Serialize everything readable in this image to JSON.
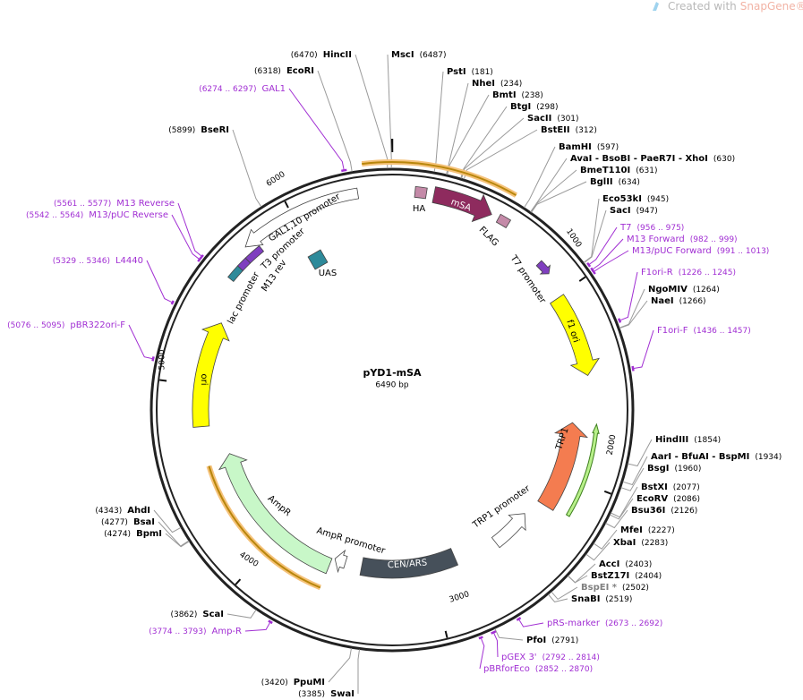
{
  "branding": {
    "prefix": "Created with",
    "product": "SnapGene®"
  },
  "plasmid": {
    "name": "pYD1-mSA",
    "size": "6490 bp"
  },
  "scale_ticks": [
    "1000",
    "2000",
    "3000",
    "4000",
    "5000",
    "6000"
  ],
  "enzymes": [
    {
      "name": "HincII",
      "position": "(6470)"
    },
    {
      "name": "EcoRI",
      "position": "(6318)"
    },
    {
      "name": "BseRI",
      "position": "(5899)"
    },
    {
      "name": "AhdI",
      "position": "(4343)"
    },
    {
      "name": "BsaI",
      "position": "(4277)"
    },
    {
      "name": "BpmI",
      "position": "(4274)"
    },
    {
      "name": "ScaI",
      "position": "(3862)"
    },
    {
      "name": "PpuMI",
      "position": "(3420)"
    },
    {
      "name": "SwaI",
      "position": "(3385)"
    },
    {
      "name": "MscI",
      "position": "(6487)"
    },
    {
      "name": "PstI",
      "position": "(181)"
    },
    {
      "name": "NheI",
      "position": "(234)"
    },
    {
      "name": "BmtI",
      "position": "(238)"
    },
    {
      "name": "BtgI",
      "position": "(298)"
    },
    {
      "name": "SacII",
      "position": "(301)"
    },
    {
      "name": "BstEII",
      "position": "(312)"
    },
    {
      "name": "BamHI",
      "position": "(597)"
    },
    {
      "name": "AvaI - BsoBI - PaeR7I - XhoI",
      "position": "(630)"
    },
    {
      "name": "BmeT110I",
      "position": "(631)"
    },
    {
      "name": "BglII",
      "position": "(634)"
    },
    {
      "name": "Eco53kI",
      "position": "(945)"
    },
    {
      "name": "SacI",
      "position": "(947)"
    },
    {
      "name": "NgoMIV",
      "position": "(1264)"
    },
    {
      "name": "NaeI",
      "position": "(1266)"
    },
    {
      "name": "HindIII",
      "position": "(1854)"
    },
    {
      "name": "AarI - BfuAI - BspMI",
      "position": "(1934)"
    },
    {
      "name": "BsgI",
      "position": "(1960)"
    },
    {
      "name": "BstXI",
      "position": "(2077)"
    },
    {
      "name": "EcoRV",
      "position": "(2086)"
    },
    {
      "name": "Bsu36I",
      "position": "(2126)"
    },
    {
      "name": "MfeI",
      "position": "(2227)"
    },
    {
      "name": "XbaI",
      "position": "(2283)"
    },
    {
      "name": "AccI",
      "position": "(2403)"
    },
    {
      "name": "BstZ17I",
      "position": "(2404)"
    },
    {
      "name": "BspEI *",
      "position": "(2502)",
      "color": "#808080"
    },
    {
      "name": "SnaBI",
      "position": "(2519)"
    },
    {
      "name": "PfoI",
      "position": "(2791)"
    }
  ],
  "primers": [
    {
      "name": "GAL1",
      "position": "(6274 .. 6297)"
    },
    {
      "name": "M13 Reverse",
      "position": "(5561 .. 5577)"
    },
    {
      "name": "M13/pUC Reverse",
      "position": "(5542 .. 5564)"
    },
    {
      "name": "L4440",
      "position": "(5329 .. 5346)"
    },
    {
      "name": "pBR322ori-F",
      "position": "(5076 .. 5095)"
    },
    {
      "name": "Amp-R",
      "position": "(3774 .. 3793)"
    },
    {
      "name": "T7",
      "position": "(956 .. 975)"
    },
    {
      "name": "M13 Forward",
      "position": "(982 .. 999)"
    },
    {
      "name": "M13/pUC Forward",
      "position": "(991 .. 1013)"
    },
    {
      "name": "F1ori-R",
      "position": "(1226 .. 1245)"
    },
    {
      "name": "F1ori-F",
      "position": "(1436 .. 1457)"
    },
    {
      "name": "pRS-marker",
      "position": "(2673 .. 2692)"
    },
    {
      "name": "pGEX 3'",
      "position": "(2792 .. 2814)"
    },
    {
      "name": "pBRforEco",
      "position": "(2852 .. 2870)"
    }
  ],
  "primer_color": "#a12fd3",
  "features": [
    {
      "label": "GAL1,10 promoter",
      "color": "#ffffff"
    },
    {
      "label": "T3 promoter",
      "color": "#7f3fbf"
    },
    {
      "label": "M13 rev",
      "color": "#7f3fbf"
    },
    {
      "label": "lac promoter",
      "color": "#2e8a9a"
    },
    {
      "label": "UAS",
      "color": "#2e8a9a"
    },
    {
      "label": "HA",
      "color": "#c48aa8"
    },
    {
      "label": "mSA",
      "color": "#8e2b5e"
    },
    {
      "label": "FLAG",
      "color": "#c48aa8"
    },
    {
      "label": "T7 promoter",
      "color": "#7f3fbf"
    },
    {
      "label": "f1 ori",
      "color": "#ffff00"
    },
    {
      "label": "TRP1",
      "color": "#f47c50"
    },
    {
      "label": "TRP1 promoter",
      "color": "#ffffff"
    },
    {
      "label": "CEN/ARS",
      "color": "#46505a"
    },
    {
      "label": "AmpR promoter",
      "color": "#ffffff"
    },
    {
      "label": "AmpR",
      "color": "#c8f7c8"
    },
    {
      "label": "ori",
      "color": "#ffff00"
    }
  ]
}
